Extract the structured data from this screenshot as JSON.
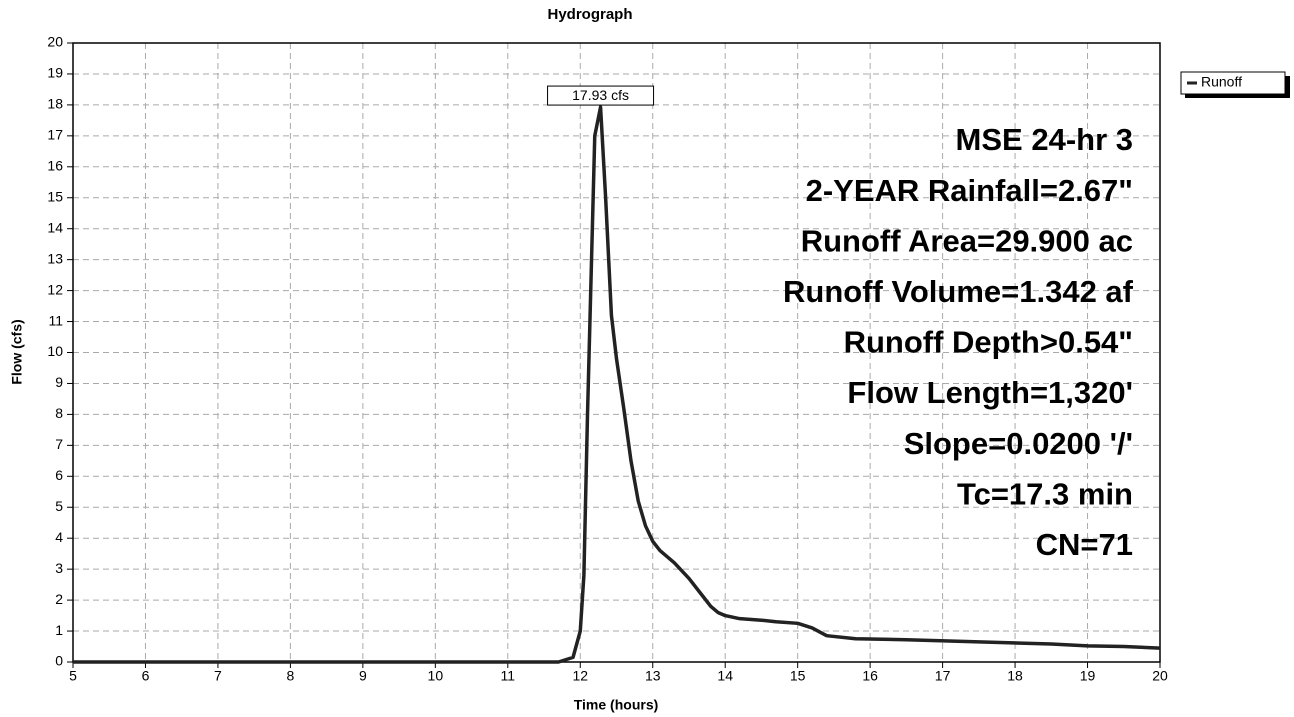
{
  "chart_data": {
    "type": "line",
    "title": "Hydrograph",
    "x_label": "Time  (hours)",
    "y_label": "Flow  (cfs)",
    "x": [
      5,
      11.7,
      11.9,
      12.0,
      12.05,
      12.1,
      12.2,
      12.28,
      12.35,
      12.43,
      12.5,
      12.6,
      12.7,
      12.8,
      12.9,
      13.0,
      13.1,
      13.3,
      13.5,
      13.7,
      13.8,
      13.9,
      14.0,
      14.2,
      14.5,
      14.7,
      15.0,
      15.2,
      15.4,
      15.8,
      16.5,
      17.5,
      18.5,
      19.0,
      19.5,
      20.0
    ],
    "series": [
      {
        "name": "Runoff",
        "color": "#222222",
        "values": [
          0,
          0,
          0.15,
          1.0,
          2.8,
          8,
          17.0,
          17.93,
          15,
          11.2,
          9.8,
          8.2,
          6.5,
          5.2,
          4.4,
          3.9,
          3.6,
          3.2,
          2.7,
          2.1,
          1.8,
          1.6,
          1.5,
          1.4,
          1.35,
          1.3,
          1.25,
          1.1,
          0.85,
          0.75,
          0.72,
          0.65,
          0.58,
          0.52,
          0.5,
          0.45
        ]
      }
    ],
    "xlim": [
      5,
      20
    ],
    "ylim": [
      0,
      20
    ],
    "xticks": [
      5,
      6,
      7,
      8,
      9,
      10,
      11,
      12,
      13,
      14,
      15,
      16,
      17,
      18,
      19,
      20
    ],
    "yticks": [
      0,
      1,
      2,
      3,
      4,
      5,
      6,
      7,
      8,
      9,
      10,
      11,
      12,
      13,
      14,
      15,
      16,
      17,
      18,
      19,
      20
    ],
    "grid": true,
    "legend": "outside-top-right",
    "peak_annotation": {
      "text": "17.93 cfs",
      "x": 12.28,
      "y": 17.93
    },
    "annotations": [
      "MSE 24-hr 3",
      "2-YEAR Rainfall=2.67\"",
      "Runoff Area=29.900 ac",
      "Runoff Volume=1.342 af",
      "Runoff Depth>0.54\"",
      "Flow Length=1,320'",
      "Slope=0.0200 '/'",
      "Tc=17.3 min",
      "CN=71"
    ]
  }
}
